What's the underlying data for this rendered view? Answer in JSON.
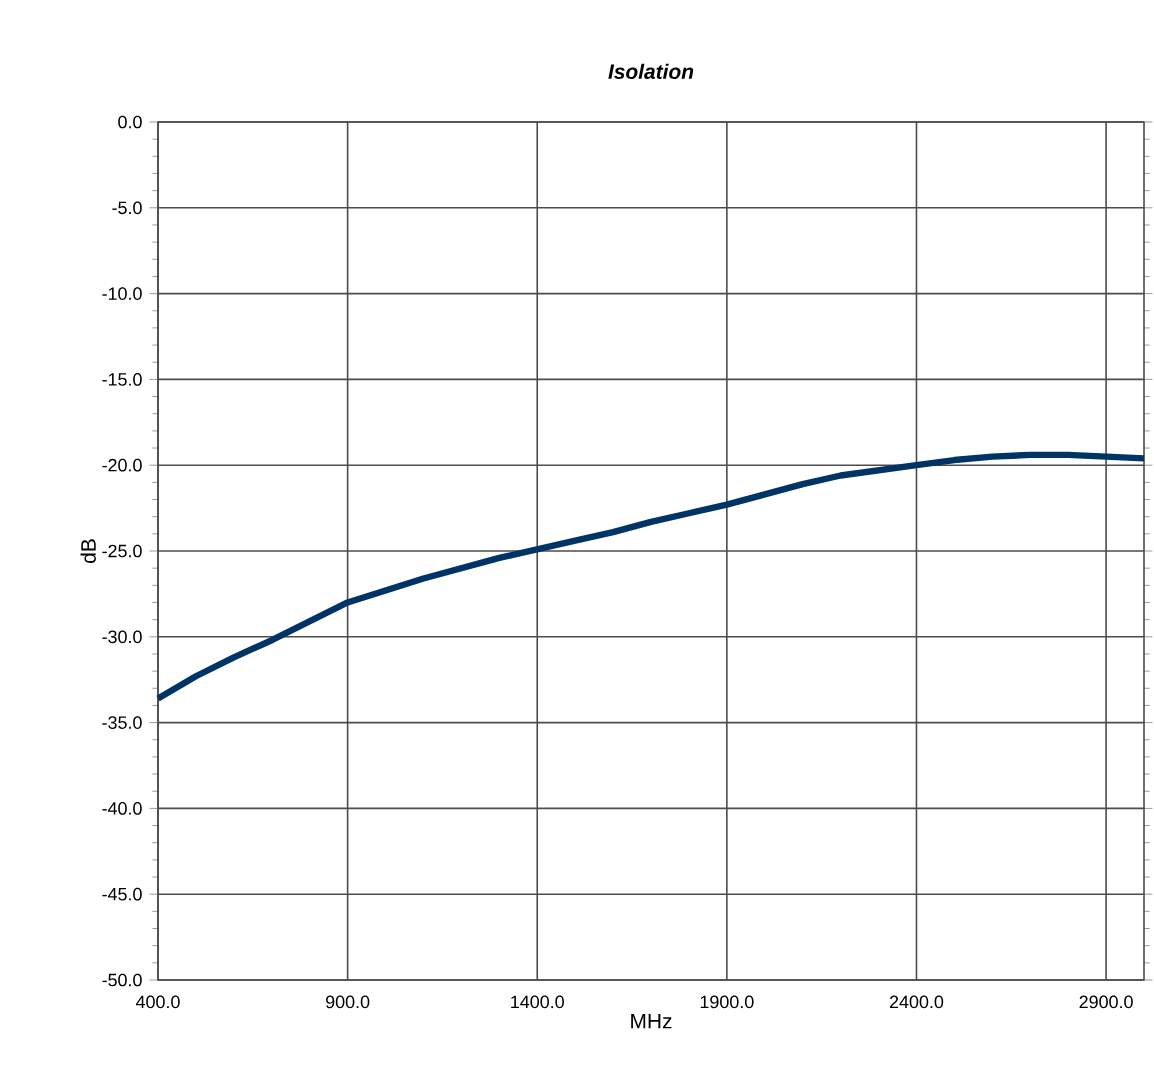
{
  "chart_data": {
    "type": "line",
    "title": "Isolation",
    "xlabel": "MHz",
    "ylabel": "dB",
    "x": [
      400,
      500,
      600,
      700,
      800,
      900,
      1000,
      1100,
      1200,
      1300,
      1400,
      1500,
      1600,
      1700,
      1800,
      1900,
      2000,
      2100,
      2200,
      2300,
      2400,
      2500,
      2600,
      2700,
      2800,
      2900,
      3000
    ],
    "series": [
      {
        "color": "#003366",
        "values": [
          -33.6,
          -32.3,
          -31.2,
          -30.2,
          -29.1,
          -28.0,
          -27.3,
          -26.6,
          -26.0,
          -25.4,
          -24.9,
          -24.4,
          -23.9,
          -23.3,
          -22.8,
          -22.3,
          -21.7,
          -21.1,
          -20.6,
          -20.3,
          -20.0,
          -19.7,
          -19.5,
          -19.4,
          -19.4,
          -19.5,
          -19.6
        ]
      }
    ],
    "xlim": [
      400,
      3000
    ],
    "ylim": [
      -50,
      0
    ],
    "xticks": [
      {
        "value": 400,
        "label": "400.0"
      },
      {
        "value": 900,
        "label": "900.0"
      },
      {
        "value": 1400,
        "label": "1400.0"
      },
      {
        "value": 1900,
        "label": "1900.0"
      },
      {
        "value": 2400,
        "label": "2400.0"
      },
      {
        "value": 2900,
        "label": "2900.0"
      }
    ],
    "yticks": [
      {
        "value": -50,
        "label": "-50.0"
      },
      {
        "value": -45,
        "label": "-45.0"
      },
      {
        "value": -40,
        "label": "-40.0"
      },
      {
        "value": -35,
        "label": "-35.0"
      },
      {
        "value": -30,
        "label": "-30.0"
      },
      {
        "value": -25,
        "label": "-25.0"
      },
      {
        "value": -20,
        "label": "-20.0"
      },
      {
        "value": -15,
        "label": "-15.0"
      },
      {
        "value": -10,
        "label": "-10.0"
      },
      {
        "value": -5,
        "label": "-5.0"
      },
      {
        "value": 0,
        "label": "0.0"
      }
    ],
    "grid": true,
    "marker": "none",
    "line_style": "solid"
  }
}
